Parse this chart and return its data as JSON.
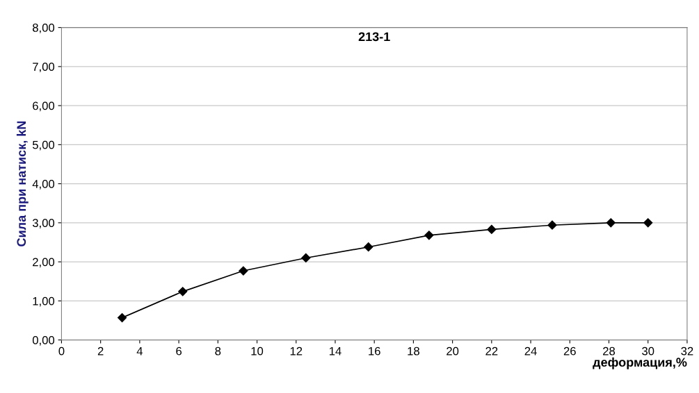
{
  "chart_data": {
    "type": "line",
    "title": "213-1",
    "xlabel": "деформация,%",
    "ylabel": "Сила при натиск, kN",
    "x": [
      3.1,
      6.2,
      9.3,
      12.5,
      15.7,
      18.8,
      22.0,
      25.1,
      28.1,
      30.0
    ],
    "series": [
      {
        "color": "#000000",
        "values": [
          0.57,
          1.24,
          1.77,
          2.1,
          2.38,
          2.68,
          2.83,
          2.94,
          3.0,
          3.0
        ]
      }
    ],
    "xlim": [
      0,
      32
    ],
    "xticks": [
      0,
      2,
      4,
      6,
      8,
      10,
      12,
      14,
      16,
      18,
      20,
      22,
      24,
      26,
      28,
      30,
      32
    ],
    "ylim": [
      0,
      8
    ],
    "yticks": [
      {
        "value": 0,
        "label": "0,00"
      },
      {
        "value": 1,
        "label": "1,00"
      },
      {
        "value": 2,
        "label": "2,00"
      },
      {
        "value": 3,
        "label": "3,00"
      },
      {
        "value": 4,
        "label": "4,00"
      },
      {
        "value": 5,
        "label": "5,00"
      },
      {
        "value": 6,
        "label": "6,00"
      },
      {
        "value": 7,
        "label": "7,00"
      },
      {
        "value": 8,
        "label": "8,00"
      }
    ],
    "grid": "y",
    "marker": "diamond",
    "line_style": "solid",
    "legend": false
  }
}
